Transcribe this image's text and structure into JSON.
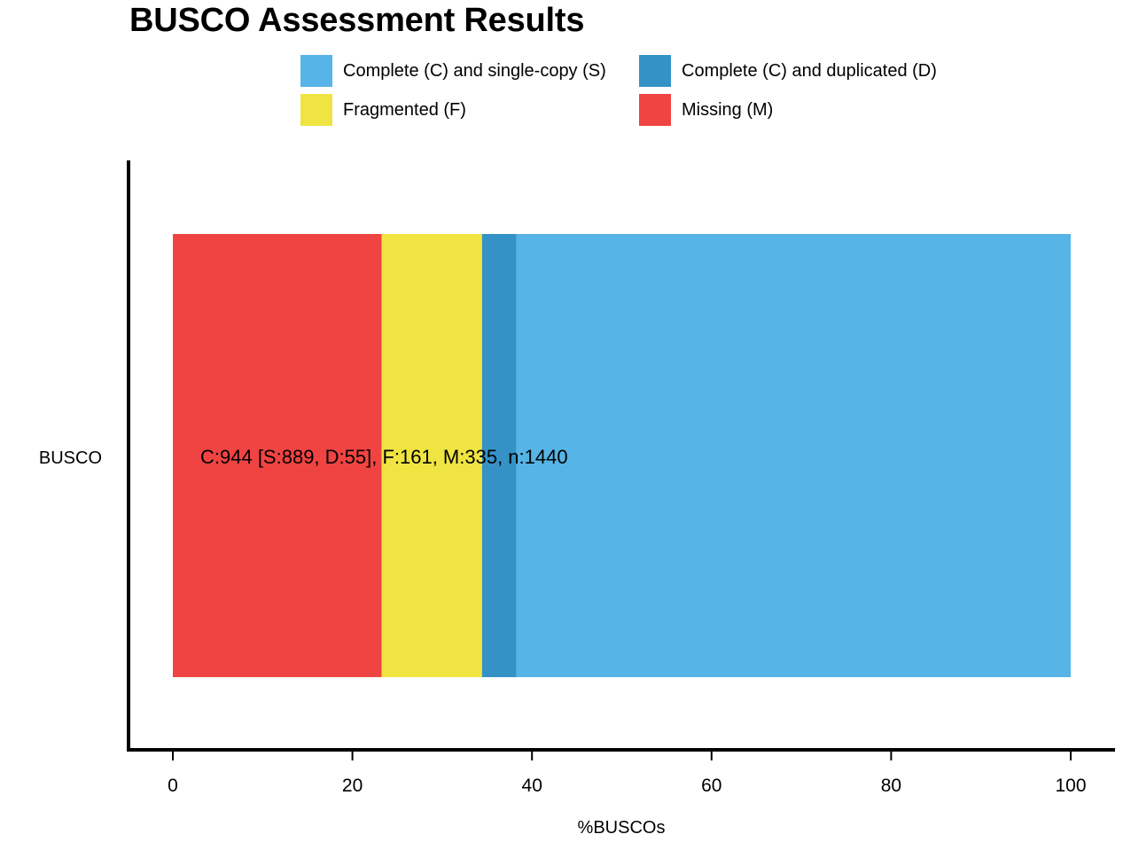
{
  "colors": {
    "single": "#56b4e7",
    "duplicated": "#3492c7",
    "fragmented": "#f0e442",
    "missing": "#f04442"
  },
  "legend": {
    "items": [
      {
        "key": "single",
        "label": "Complete (C) and single-copy (S)"
      },
      {
        "key": "duplicated",
        "label": "Complete (C) and duplicated (D)"
      },
      {
        "key": "fragmented",
        "label": "Fragmented (F)"
      },
      {
        "key": "missing",
        "label": "Missing (M)"
      }
    ]
  },
  "chart_data": {
    "type": "bar",
    "orientation": "horizontal",
    "stacked": true,
    "title": "BUSCO Assessment Results",
    "xlabel": "%BUSCOs",
    "ylabel": "",
    "xlim": [
      0,
      100
    ],
    "xticks": [
      0,
      20,
      40,
      60,
      80,
      100
    ],
    "categories": [
      "BUSCO"
    ],
    "series": [
      {
        "name": "Missing (M)",
        "key": "missing",
        "values": [
          23.26
        ]
      },
      {
        "name": "Fragmented (F)",
        "key": "fragmented",
        "values": [
          11.18
        ]
      },
      {
        "name": "Complete (C) and duplicated (D)",
        "key": "duplicated",
        "values": [
          3.82
        ]
      },
      {
        "name": "Complete (C) and single-copy (S)",
        "key": "single",
        "values": [
          61.74
        ]
      }
    ],
    "annotation": "C:944 [S:889, D:55], F:161, M:335, n:1440",
    "grid": false,
    "legend_position": "top"
  }
}
